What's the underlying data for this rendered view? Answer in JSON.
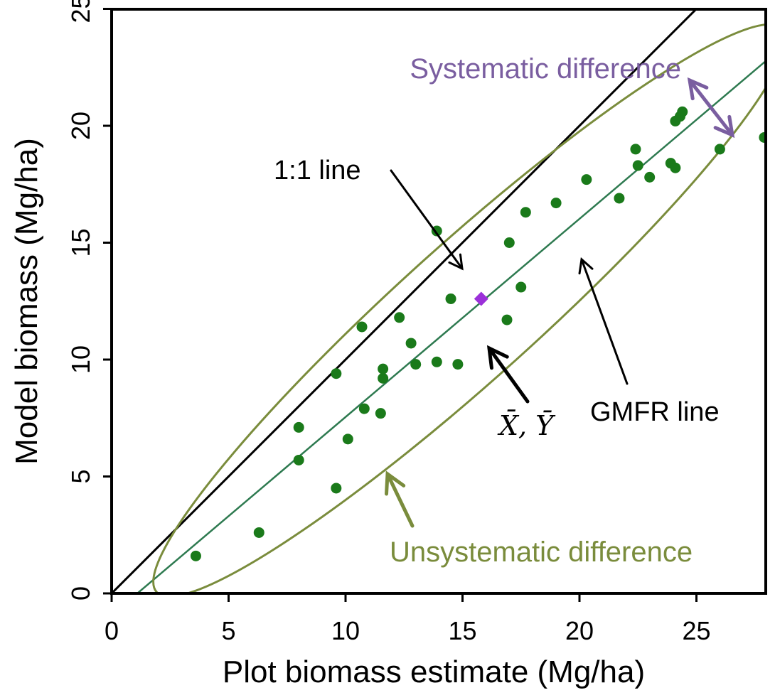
{
  "chart_data": {
    "type": "scatter",
    "title": "",
    "xlabel": "Plot biomass estimate (Mg/ha)",
    "ylabel": "Model biomass (Mg/ha)",
    "xlim": [
      0,
      28
    ],
    "ylim": [
      0,
      28
    ],
    "x_ticks": [
      0,
      5,
      10,
      15,
      20,
      25
    ],
    "y_ticks": [
      0,
      5,
      10,
      15,
      20,
      25
    ],
    "grid": false,
    "series": [
      {
        "color": "#1a7a1a",
        "points": [
          [
            3.6,
            1.6
          ],
          [
            6.3,
            2.6
          ],
          [
            8.0,
            5.7
          ],
          [
            8.0,
            7.1
          ],
          [
            9.6,
            4.5
          ],
          [
            9.6,
            9.4
          ],
          [
            10.1,
            6.6
          ],
          [
            10.7,
            11.4
          ],
          [
            10.8,
            7.9
          ],
          [
            11.5,
            7.7
          ],
          [
            11.6,
            9.2
          ],
          [
            11.6,
            9.6
          ],
          [
            12.3,
            11.8
          ],
          [
            12.8,
            10.7
          ],
          [
            13.0,
            9.8
          ],
          [
            13.9,
            9.9
          ],
          [
            13.9,
            15.5
          ],
          [
            14.5,
            12.6
          ],
          [
            14.8,
            9.8
          ],
          [
            16.9,
            11.7
          ],
          [
            17.0,
            15.0
          ],
          [
            17.5,
            13.1
          ],
          [
            17.7,
            16.3
          ],
          [
            19.0,
            16.7
          ],
          [
            20.3,
            17.7
          ],
          [
            21.7,
            16.9
          ],
          [
            22.4,
            19.0
          ],
          [
            22.5,
            18.3
          ],
          [
            23.0,
            17.8
          ],
          [
            23.9,
            18.4
          ],
          [
            24.1,
            18.2
          ],
          [
            24.1,
            20.2
          ],
          [
            24.3,
            20.4
          ],
          [
            24.4,
            20.6
          ],
          [
            26.0,
            19.0
          ],
          [
            27.9,
            19.5
          ]
        ]
      }
    ],
    "mean_point": {
      "x": 15.8,
      "y": 12.6,
      "color": "#9b30d9",
      "label": "X̄, Ȳ"
    },
    "lines": {
      "one_to_one": {
        "label": "1:1 line",
        "color": "#000000",
        "from": [
          0,
          0
        ],
        "to": [
          28,
          28
        ]
      },
      "gmfr": {
        "label": "GMFR line",
        "color": "#2e7a50",
        "from": [
          1.1,
          0
        ],
        "to": [
          28,
          22.8
        ]
      }
    },
    "ellipse": {
      "color": "#7a8c3c",
      "cx": 15.3,
      "cy": 12.1,
      "semi_major": 18.0,
      "semi_minor": 2.9,
      "angle_deg": 42
    },
    "annotations": {
      "systematic": {
        "text": "Systematic difference",
        "color": "#7a5ea0"
      },
      "unsystematic": {
        "text": "Unsystematic difference",
        "color": "#7a8c3c"
      }
    }
  }
}
